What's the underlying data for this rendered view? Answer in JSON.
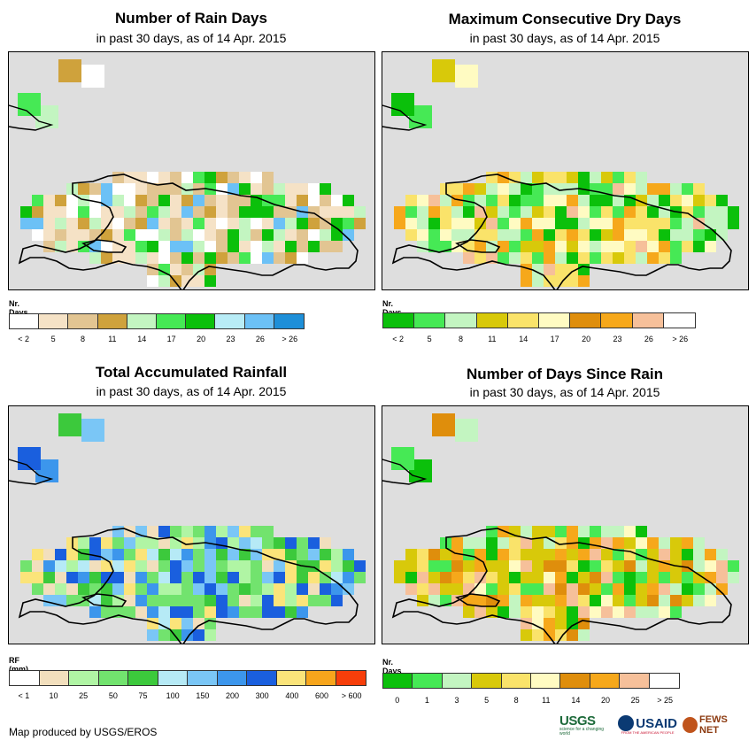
{
  "panels": [
    {
      "id": "rain-days",
      "title": "Number of Rain Days",
      "subtitle": "in past 30 days, as of 14 Apr. 2015",
      "legend": {
        "title": "Nr. Days",
        "colors": [
          "#ffffff",
          "#f5e2c6",
          "#e2c592",
          "#cfa23c",
          "#c3f5c1",
          "#46e955",
          "#0bc00b",
          "#b8ecf6",
          "#6cc1f6",
          "#1e8fd8"
        ],
        "labels": [
          "< 2",
          "5",
          "8",
          "11",
          "14",
          "17",
          "20",
          "23",
          "26",
          "> 26"
        ]
      }
    },
    {
      "id": "dry-days",
      "title": "Maximum Consecutive Dry Days",
      "subtitle": "in past 30 days, as of 14 Apr. 2015",
      "legend": {
        "title": "Nr. Days",
        "colors": [
          "#0bc00b",
          "#46e955",
          "#c3f5c1",
          "#d8c90a",
          "#fae36a",
          "#fffbc2",
          "#df8e0c",
          "#f6a81b",
          "#f6c09a",
          "#ffffff"
        ],
        "labels": [
          "< 2",
          "5",
          "8",
          "11",
          "14",
          "17",
          "20",
          "23",
          "26",
          "> 26"
        ]
      }
    },
    {
      "id": "rainfall",
      "title": "Total Accumulated Rainfall",
      "subtitle": "in past 30 days, as of 14 Apr. 2015",
      "legend": {
        "title": "RF (mm)",
        "colors": [
          "#ffffff",
          "#f2dfbd",
          "#b0f5a4",
          "#72e36e",
          "#3cc93c",
          "#b6eaf6",
          "#7ac6f6",
          "#3c96ec",
          "#1a5fde",
          "#fbe47a",
          "#f7a51c",
          "#f73e0a"
        ],
        "labels": [
          "< 1",
          "10",
          "25",
          "50",
          "75",
          "100",
          "150",
          "200",
          "300",
          "400",
          "600",
          "> 600"
        ]
      }
    },
    {
      "id": "days-since-rain",
      "title": "Number of Days Since Rain",
      "subtitle": "in past 30 days, as of 14 Apr. 2015",
      "legend": {
        "title": "Nr. Days",
        "colors": [
          "#0bc00b",
          "#46e955",
          "#c3f5c1",
          "#d8c90a",
          "#fae36a",
          "#fffbc2",
          "#df8e0c",
          "#f6a81b",
          "#f6c09a",
          "#ffffff"
        ],
        "labels": [
          "0",
          "1",
          "3",
          "5",
          "8",
          "11",
          "14",
          "20",
          "25",
          "> 25"
        ]
      }
    }
  ],
  "footer": {
    "credit": "Map produced by USGS/EROS",
    "logos": {
      "usgs": "USGS",
      "usgs_tagline": "science for a changing world",
      "usaid": "USAID",
      "usaid_tagline": "FROM THE AMERICAN PEOPLE",
      "fews": "FEWS NET"
    }
  }
}
